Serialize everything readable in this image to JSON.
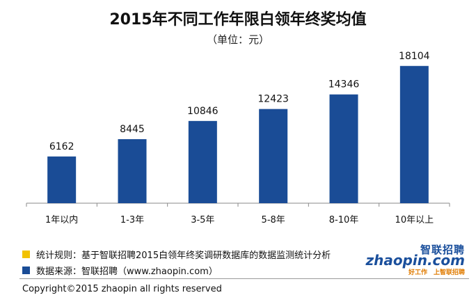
{
  "chart_data": {
    "type": "bar",
    "title": "2015年不同工作年限白领年终奖均值",
    "subtitle": "（单位：元）",
    "categories": [
      "1年以内",
      "1-3年",
      "3-5年",
      "5-8年",
      "8-10年",
      "10年以上"
    ],
    "values": [
      6162,
      8445,
      10846,
      12423,
      14346,
      18104
    ],
    "ylim": [
      0,
      19000
    ],
    "grid": false,
    "bar_color": "#1a4c96"
  },
  "notes": {
    "rule_label": "统计规则：基于智联招聘2015白领年终奖调研数据库的数据监测统计分析",
    "rule_color": "#f2c200",
    "source_label": "数据来源：智联招聘（www.zhaopin.com）",
    "source_color": "#1a4c96"
  },
  "logo": {
    "cn": "智联招聘",
    "en": "zhaopin.com",
    "tagline": "好工作　上智联招聘"
  },
  "footer": {
    "copyright": "Copyright©2015 zhaopin all rights reserved"
  }
}
